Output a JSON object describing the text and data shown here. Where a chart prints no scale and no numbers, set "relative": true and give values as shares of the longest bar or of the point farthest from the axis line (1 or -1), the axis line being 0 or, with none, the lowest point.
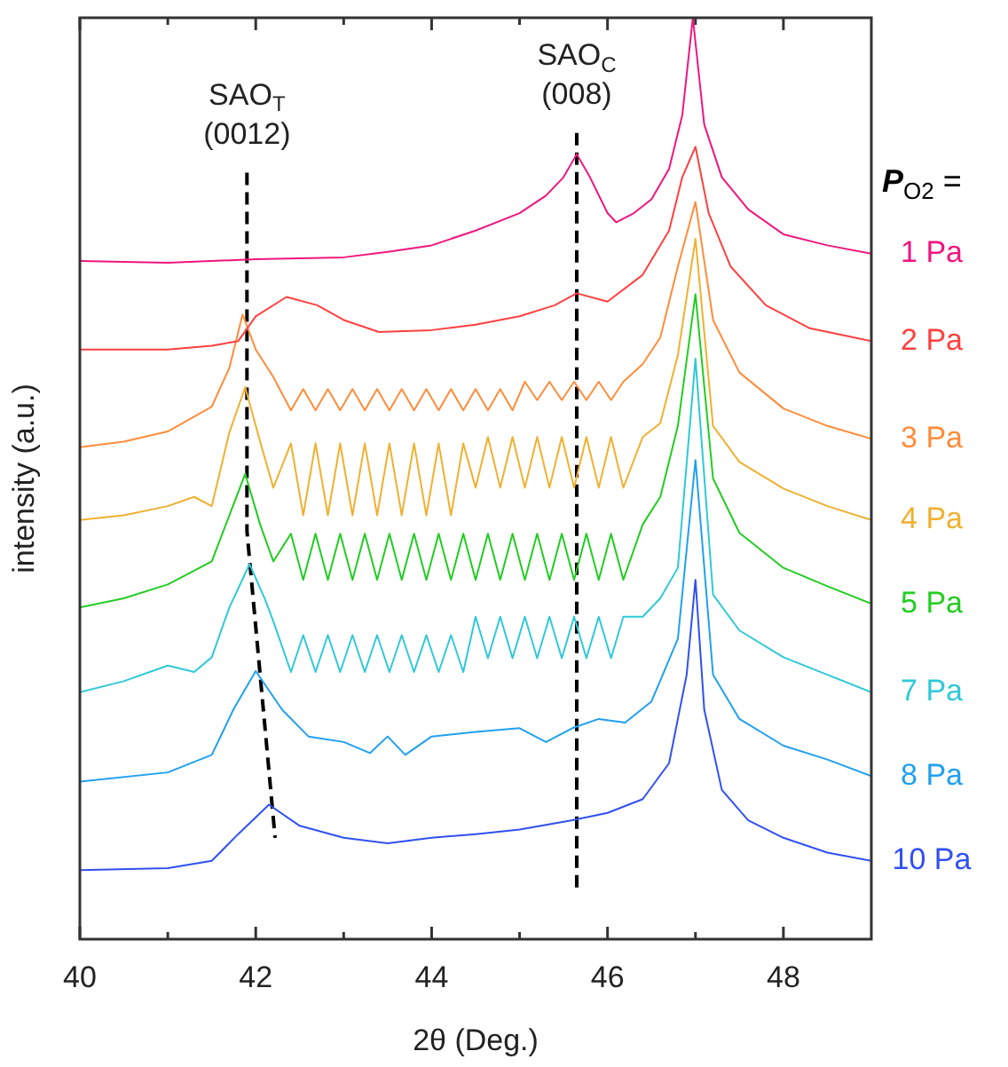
{
  "chart_data": {
    "type": "line",
    "xlabel": "2θ (Deg.)",
    "ylabel": "intensity (a.u.)",
    "legend_title": "P$_{O2}$ =",
    "relative": true,
    "marker": "none",
    "grid": false,
    "tick_labels": "x",
    "xlim": [
      40,
      49
    ],
    "xticks": [
      40,
      {
        "value": 41,
        "label": null
      },
      42,
      {
        "value": 43,
        "label": null
      },
      44,
      {
        "value": 45,
        "label": null
      },
      46,
      {
        "value": 47,
        "label": null
      },
      48
    ],
    "annotations": [
      "SAO$_{T}$\n(0012)",
      "SAO$_{C}$\n(008)"
    ],
    "series": [
      {
        "name": "1 Pa",
        "color": "#f0157f",
        "x": [
          40,
          41,
          42,
          43,
          43.5,
          44,
          44.5,
          45,
          45.3,
          45.5,
          45.65,
          45.8,
          46.0,
          46.1,
          46.3,
          46.5,
          46.7,
          46.85,
          46.97,
          47.1,
          47.3,
          47.6,
          48,
          48.5,
          49
        ],
        "values": [
          0.736,
          0.734,
          0.738,
          0.74,
          0.746,
          0.753,
          0.769,
          0.788,
          0.807,
          0.827,
          0.852,
          0.827,
          0.788,
          0.778,
          0.788,
          0.803,
          0.836,
          0.894,
          1,
          0.884,
          0.827,
          0.792,
          0.765,
          0.753,
          0.744
        ]
      },
      {
        "name": "2 Pa",
        "color": "#ff4040",
        "x": [
          40,
          41,
          41.5,
          41.8,
          42.0,
          42.35,
          42.7,
          43,
          43.4,
          44,
          44.5,
          45,
          45.4,
          45.65,
          46,
          46.4,
          46.7,
          46.85,
          47,
          47.15,
          47.4,
          47.8,
          48.3,
          49
        ],
        "values": [
          0.64,
          0.64,
          0.644,
          0.649,
          0.676,
          0.697,
          0.688,
          0.672,
          0.659,
          0.661,
          0.667,
          0.676,
          0.688,
          0.701,
          0.692,
          0.721,
          0.769,
          0.827,
          0.86,
          0.788,
          0.73,
          0.688,
          0.663,
          0.649
        ]
      },
      {
        "name": "3 Pa",
        "color": "#ff8c3a",
        "x": [
          40,
          40.5,
          41,
          41.5,
          41.7,
          41.85,
          42.0,
          42.2,
          42.4,
          42.54,
          42.68,
          42.82,
          42.96,
          43.1,
          43.24,
          43.38,
          43.52,
          43.66,
          43.8,
          43.94,
          44.08,
          44.22,
          44.36,
          44.5,
          44.64,
          44.78,
          44.92,
          45.06,
          45.2,
          45.34,
          45.48,
          45.62,
          45.76,
          45.9,
          46.04,
          46.18,
          46.4,
          46.6,
          46.8,
          47,
          47.2,
          47.5,
          48,
          48.5,
          49
        ],
        "values": [
          0.534,
          0.54,
          0.551,
          0.578,
          0.62,
          0.678,
          0.64,
          0.61,
          0.574,
          0.597,
          0.574,
          0.597,
          0.574,
          0.597,
          0.574,
          0.597,
          0.574,
          0.597,
          0.574,
          0.597,
          0.574,
          0.597,
          0.574,
          0.597,
          0.574,
          0.597,
          0.574,
          0.605,
          0.585,
          0.605,
          0.585,
          0.605,
          0.585,
          0.605,
          0.585,
          0.605,
          0.624,
          0.653,
          0.73,
          0.8,
          0.672,
          0.615,
          0.576,
          0.557,
          0.543
        ]
      },
      {
        "name": "4 Pa",
        "color": "#f0b030",
        "x": [
          40,
          40.5,
          41,
          41.3,
          41.5,
          41.7,
          41.88,
          42.05,
          42.2,
          42.4,
          42.54,
          42.68,
          42.82,
          42.96,
          43.1,
          43.24,
          43.38,
          43.52,
          43.66,
          43.8,
          43.94,
          44.08,
          44.22,
          44.36,
          44.5,
          44.64,
          44.78,
          44.92,
          45.06,
          45.2,
          45.34,
          45.48,
          45.62,
          45.76,
          45.9,
          46.04,
          46.18,
          46.4,
          46.6,
          46.8,
          47,
          47.2,
          47.5,
          48,
          48.5,
          49
        ],
        "values": [
          0.455,
          0.46,
          0.47,
          0.48,
          0.47,
          0.55,
          0.599,
          0.54,
          0.49,
          0.538,
          0.46,
          0.538,
          0.46,
          0.538,
          0.46,
          0.538,
          0.46,
          0.538,
          0.46,
          0.538,
          0.46,
          0.538,
          0.46,
          0.538,
          0.49,
          0.545,
          0.49,
          0.545,
          0.49,
          0.545,
          0.49,
          0.545,
          0.49,
          0.545,
          0.49,
          0.545,
          0.49,
          0.545,
          0.56,
          0.634,
          0.76,
          0.557,
          0.518,
          0.489,
          0.47,
          0.455
        ]
      },
      {
        "name": "5 Pa",
        "color": "#22cc22",
        "x": [
          40,
          40.5,
          41,
          41.3,
          41.5,
          41.7,
          41.88,
          42.05,
          42.2,
          42.4,
          42.54,
          42.68,
          42.82,
          42.96,
          43.1,
          43.24,
          43.38,
          43.52,
          43.66,
          43.8,
          43.94,
          44.08,
          44.22,
          44.36,
          44.5,
          44.64,
          44.78,
          44.92,
          45.06,
          45.2,
          45.34,
          45.48,
          45.62,
          45.76,
          45.9,
          46.04,
          46.18,
          46.4,
          46.6,
          46.8,
          47,
          47.2,
          47.5,
          48,
          48.5,
          49
        ],
        "values": [
          0.36,
          0.37,
          0.385,
          0.4,
          0.41,
          0.46,
          0.505,
          0.45,
          0.41,
          0.44,
          0.39,
          0.44,
          0.39,
          0.44,
          0.39,
          0.44,
          0.39,
          0.44,
          0.39,
          0.44,
          0.39,
          0.44,
          0.39,
          0.44,
          0.39,
          0.44,
          0.39,
          0.44,
          0.39,
          0.44,
          0.39,
          0.44,
          0.39,
          0.44,
          0.39,
          0.44,
          0.39,
          0.45,
          0.48,
          0.557,
          0.7,
          0.5,
          0.441,
          0.403,
          0.383,
          0.364
        ]
      },
      {
        "name": "7 Pa",
        "color": "#30c8d8",
        "x": [
          40,
          40.5,
          41,
          41.3,
          41.5,
          41.7,
          41.93,
          42.1,
          42.2,
          42.4,
          42.54,
          42.68,
          42.82,
          42.96,
          43.1,
          43.24,
          43.38,
          43.52,
          43.66,
          43.8,
          43.94,
          44.08,
          44.22,
          44.36,
          44.5,
          44.64,
          44.78,
          44.92,
          45.06,
          45.2,
          45.34,
          45.48,
          45.62,
          45.76,
          45.9,
          46.04,
          46.18,
          46.4,
          46.6,
          46.8,
          47,
          47.2,
          47.5,
          48,
          48.5,
          49
        ],
        "values": [
          0.268,
          0.28,
          0.297,
          0.29,
          0.306,
          0.36,
          0.407,
          0.37,
          0.345,
          0.29,
          0.33,
          0.29,
          0.33,
          0.29,
          0.33,
          0.29,
          0.33,
          0.29,
          0.33,
          0.29,
          0.33,
          0.29,
          0.33,
          0.29,
          0.35,
          0.305,
          0.35,
          0.305,
          0.35,
          0.305,
          0.35,
          0.305,
          0.35,
          0.305,
          0.35,
          0.305,
          0.35,
          0.35,
          0.37,
          0.403,
          0.63,
          0.374,
          0.335,
          0.306,
          0.287,
          0.268
        ]
      },
      {
        "name": "8 Pa",
        "color": "#20a0f0",
        "x": [
          40,
          41,
          41.5,
          41.75,
          42.0,
          42.3,
          42.6,
          43,
          43.3,
          43.5,
          43.7,
          44,
          44.5,
          45,
          45.3,
          45.6,
          45.9,
          46.2,
          46.5,
          46.8,
          47,
          47.2,
          47.5,
          48,
          48.5,
          49
        ],
        "values": [
          0.171,
          0.181,
          0.2,
          0.25,
          0.291,
          0.249,
          0.22,
          0.214,
          0.202,
          0.22,
          0.2,
          0.22,
          0.225,
          0.229,
          0.214,
          0.229,
          0.239,
          0.235,
          0.258,
          0.326,
          0.52,
          0.287,
          0.239,
          0.21,
          0.195,
          0.177
        ]
      },
      {
        "name": "10 Pa",
        "color": "#3050f0",
        "x": [
          40,
          41,
          41.5,
          41.8,
          42.15,
          42.5,
          43,
          43.5,
          44,
          44.5,
          45,
          45.6,
          46,
          46.4,
          46.7,
          46.9,
          47,
          47.1,
          47.3,
          47.6,
          48,
          48.5,
          49
        ],
        "values": [
          0.075,
          0.077,
          0.085,
          0.114,
          0.146,
          0.123,
          0.11,
          0.104,
          0.11,
          0.114,
          0.119,
          0.129,
          0.137,
          0.152,
          0.191,
          0.287,
          0.39,
          0.249,
          0.162,
          0.129,
          0.11,
          0.094,
          0.085
        ]
      },
      {
        "color": "#000000",
        "line_style": "dashed",
        "x": [
          41.9,
          41.9,
          42.22
        ],
        "values": [
          0.832,
          0.443,
          0.11
        ]
      },
      {
        "color": "#000000",
        "line_style": "dashed",
        "x": [
          45.65,
          45.65
        ],
        "values": [
          0.875,
          0.056
        ]
      }
    ]
  }
}
